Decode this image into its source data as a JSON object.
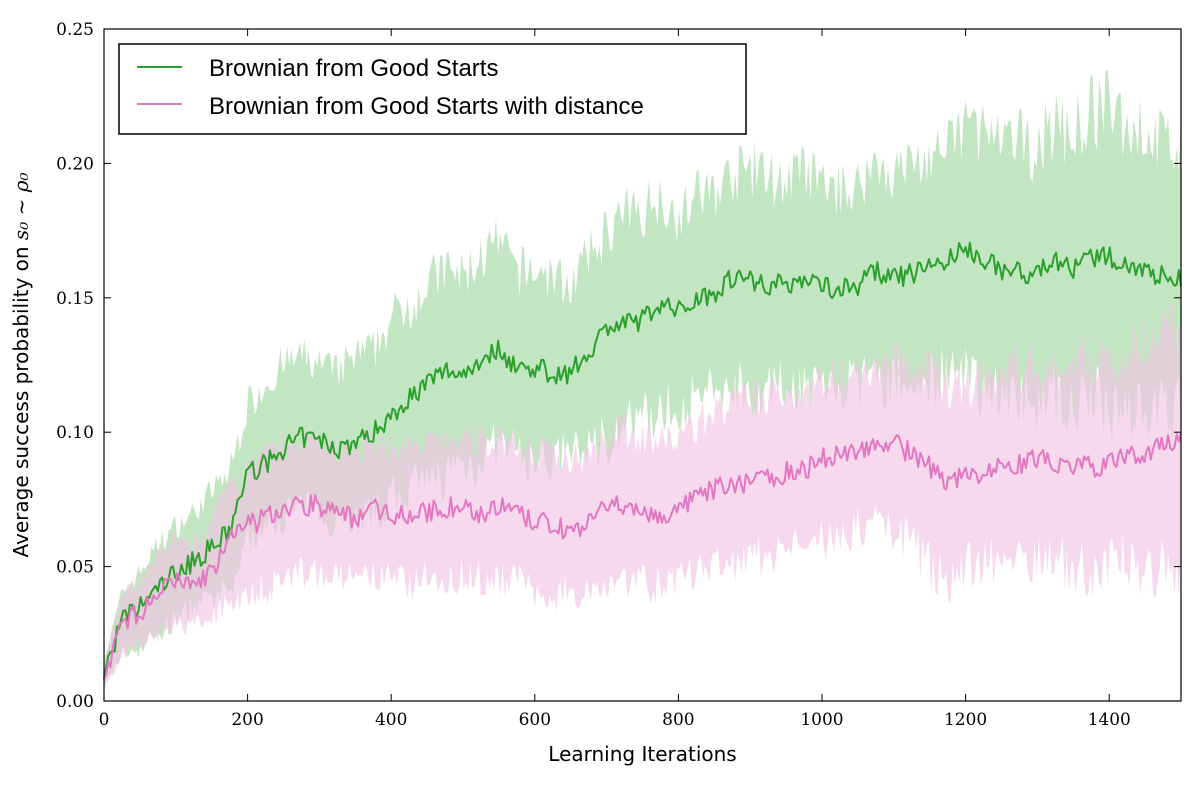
{
  "chart_data": {
    "type": "line",
    "title": "",
    "xlabel": "Learning Iterations",
    "ylabel_prefix": "Average success probability on ",
    "ylabel_math": "s₀ ~ ρ₀",
    "xlim": [
      0,
      1500
    ],
    "ylim": [
      0,
      0.25
    ],
    "xticks": [
      0,
      200,
      400,
      600,
      800,
      1000,
      1200,
      1400
    ],
    "yticks": [
      0.0,
      0.05,
      0.1,
      0.15,
      0.2,
      0.25
    ],
    "ytick_labels": [
      "0.00",
      "0.05",
      "0.10",
      "0.15",
      "0.20",
      "0.25"
    ],
    "grid": false,
    "legend_position": "top-left",
    "series": [
      {
        "name": "Brownian from Good Starts",
        "color": "#2ca02c",
        "band_color": "#bfe5bf",
        "x": [
          0,
          25,
          50,
          75,
          100,
          125,
          150,
          175,
          200,
          225,
          250,
          275,
          300,
          325,
          350,
          375,
          400,
          425,
          450,
          475,
          500,
          525,
          550,
          575,
          600,
          625,
          650,
          675,
          700,
          725,
          750,
          775,
          800,
          825,
          850,
          875,
          900,
          925,
          950,
          975,
          1000,
          1025,
          1050,
          1075,
          1100,
          1125,
          1150,
          1175,
          1200,
          1225,
          1250,
          1275,
          1300,
          1325,
          1350,
          1375,
          1400,
          1425,
          1450,
          1475,
          1500
        ],
        "y": [
          0.01,
          0.03,
          0.035,
          0.042,
          0.048,
          0.052,
          0.057,
          0.063,
          0.085,
          0.088,
          0.094,
          0.098,
          0.097,
          0.094,
          0.096,
          0.1,
          0.106,
          0.113,
          0.118,
          0.123,
          0.122,
          0.127,
          0.131,
          0.124,
          0.124,
          0.122,
          0.122,
          0.13,
          0.139,
          0.14,
          0.142,
          0.148,
          0.145,
          0.15,
          0.152,
          0.158,
          0.157,
          0.155,
          0.155,
          0.157,
          0.155,
          0.153,
          0.155,
          0.16,
          0.157,
          0.159,
          0.162,
          0.164,
          0.168,
          0.165,
          0.16,
          0.16,
          0.158,
          0.165,
          0.16,
          0.165,
          0.165,
          0.163,
          0.16,
          0.158,
          0.157
        ],
        "lower": [
          0.005,
          0.018,
          0.02,
          0.025,
          0.03,
          0.035,
          0.037,
          0.04,
          0.06,
          0.065,
          0.07,
          0.072,
          0.07,
          0.068,
          0.068,
          0.07,
          0.075,
          0.078,
          0.08,
          0.085,
          0.088,
          0.09,
          0.095,
          0.092,
          0.088,
          0.09,
          0.092,
          0.095,
          0.098,
          0.102,
          0.104,
          0.108,
          0.11,
          0.112,
          0.115,
          0.118,
          0.116,
          0.115,
          0.118,
          0.117,
          0.118,
          0.116,
          0.118,
          0.12,
          0.118,
          0.118,
          0.12,
          0.122,
          0.118,
          0.118,
          0.115,
          0.112,
          0.112,
          0.115,
          0.11,
          0.11,
          0.11,
          0.112,
          0.11,
          0.108,
          0.108
        ],
        "upper": [
          0.015,
          0.04,
          0.048,
          0.058,
          0.065,
          0.07,
          0.078,
          0.085,
          0.11,
          0.118,
          0.125,
          0.128,
          0.125,
          0.122,
          0.128,
          0.13,
          0.142,
          0.148,
          0.155,
          0.16,
          0.158,
          0.165,
          0.17,
          0.16,
          0.16,
          0.158,
          0.155,
          0.165,
          0.175,
          0.18,
          0.183,
          0.188,
          0.18,
          0.188,
          0.19,
          0.195,
          0.198,
          0.195,
          0.193,
          0.197,
          0.192,
          0.19,
          0.192,
          0.2,
          0.196,
          0.2,
          0.202,
          0.205,
          0.215,
          0.212,
          0.205,
          0.208,
          0.206,
          0.215,
          0.21,
          0.22,
          0.22,
          0.215,
          0.212,
          0.208,
          0.206
        ]
      },
      {
        "name": "Brownian from Good Starts with distance",
        "color": "#e377c2",
        "band_color": "#f2c4e4",
        "x": [
          0,
          25,
          50,
          75,
          100,
          125,
          150,
          175,
          200,
          225,
          250,
          275,
          300,
          325,
          350,
          375,
          400,
          425,
          450,
          475,
          500,
          525,
          550,
          575,
          600,
          625,
          650,
          675,
          700,
          725,
          750,
          775,
          800,
          825,
          850,
          875,
          900,
          925,
          950,
          975,
          1000,
          1025,
          1050,
          1075,
          1100,
          1125,
          1150,
          1175,
          1200,
          1225,
          1250,
          1275,
          1300,
          1325,
          1350,
          1375,
          1400,
          1425,
          1450,
          1475,
          1500
        ],
        "y": [
          0.01,
          0.028,
          0.033,
          0.04,
          0.045,
          0.043,
          0.048,
          0.06,
          0.065,
          0.068,
          0.072,
          0.073,
          0.073,
          0.07,
          0.068,
          0.072,
          0.07,
          0.069,
          0.07,
          0.072,
          0.072,
          0.07,
          0.072,
          0.07,
          0.066,
          0.066,
          0.063,
          0.066,
          0.072,
          0.073,
          0.071,
          0.068,
          0.071,
          0.075,
          0.079,
          0.08,
          0.082,
          0.083,
          0.085,
          0.086,
          0.09,
          0.092,
          0.094,
          0.095,
          0.096,
          0.092,
          0.087,
          0.082,
          0.083,
          0.085,
          0.087,
          0.088,
          0.09,
          0.088,
          0.088,
          0.087,
          0.088,
          0.091,
          0.092,
          0.095,
          0.097
        ],
        "lower": [
          0.005,
          0.018,
          0.02,
          0.025,
          0.028,
          0.028,
          0.03,
          0.038,
          0.04,
          0.042,
          0.045,
          0.048,
          0.048,
          0.046,
          0.044,
          0.046,
          0.045,
          0.044,
          0.046,
          0.046,
          0.047,
          0.045,
          0.046,
          0.045,
          0.04,
          0.04,
          0.04,
          0.042,
          0.045,
          0.046,
          0.045,
          0.042,
          0.045,
          0.048,
          0.05,
          0.05,
          0.052,
          0.055,
          0.057,
          0.058,
          0.06,
          0.062,
          0.064,
          0.066,
          0.064,
          0.06,
          0.05,
          0.045,
          0.05,
          0.052,
          0.053,
          0.052,
          0.055,
          0.052,
          0.05,
          0.048,
          0.05,
          0.052,
          0.05,
          0.05,
          0.05
        ],
        "upper": [
          0.015,
          0.038,
          0.045,
          0.055,
          0.06,
          0.058,
          0.065,
          0.08,
          0.085,
          0.09,
          0.095,
          0.097,
          0.097,
          0.094,
          0.092,
          0.096,
          0.095,
          0.094,
          0.095,
          0.097,
          0.098,
          0.096,
          0.098,
          0.096,
          0.092,
          0.092,
          0.09,
          0.093,
          0.1,
          0.101,
          0.099,
          0.096,
          0.098,
          0.103,
          0.108,
          0.11,
          0.112,
          0.113,
          0.115,
          0.116,
          0.12,
          0.122,
          0.124,
          0.124,
          0.128,
          0.124,
          0.122,
          0.118,
          0.118,
          0.12,
          0.122,
          0.124,
          0.126,
          0.124,
          0.126,
          0.126,
          0.127,
          0.13,
          0.133,
          0.138,
          0.142
        ]
      }
    ]
  }
}
